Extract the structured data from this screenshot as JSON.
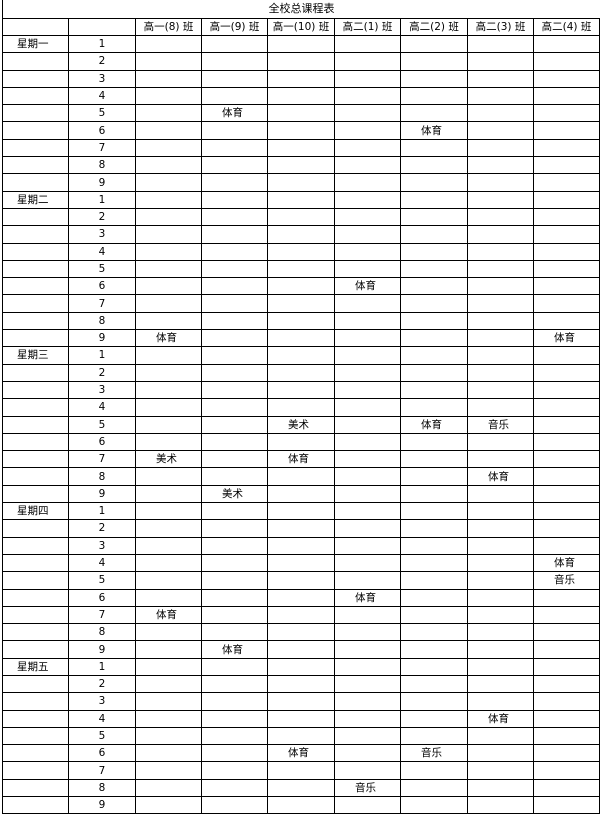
{
  "title": "全校总课程表",
  "classes": [
    "高一(8) 班",
    "高一(9) 班",
    "高一(10) 班",
    "高二(1) 班",
    "高二(2) 班",
    "高二(3) 班",
    "高二(4) 班"
  ],
  "days": [
    {
      "name": "星期一",
      "periods": [
        [
          "",
          "",
          "",
          "",
          "",
          "",
          ""
        ],
        [
          "",
          "",
          "",
          "",
          "",
          "",
          ""
        ],
        [
          "",
          "",
          "",
          "",
          "",
          "",
          ""
        ],
        [
          "",
          "",
          "",
          "",
          "",
          "",
          ""
        ],
        [
          "",
          "体育",
          "",
          "",
          "",
          "",
          ""
        ],
        [
          "",
          "",
          "",
          "",
          "体育",
          "",
          ""
        ],
        [
          "",
          "",
          "",
          "",
          "",
          "",
          ""
        ],
        [
          "",
          "",
          "",
          "",
          "",
          "",
          ""
        ],
        [
          "",
          "",
          "",
          "",
          "",
          "",
          ""
        ]
      ]
    },
    {
      "name": "星期二",
      "periods": [
        [
          "",
          "",
          "",
          "",
          "",
          "",
          ""
        ],
        [
          "",
          "",
          "",
          "",
          "",
          "",
          ""
        ],
        [
          "",
          "",
          "",
          "",
          "",
          "",
          ""
        ],
        [
          "",
          "",
          "",
          "",
          "",
          "",
          ""
        ],
        [
          "",
          "",
          "",
          "",
          "",
          "",
          ""
        ],
        [
          "",
          "",
          "",
          "体育",
          "",
          "",
          ""
        ],
        [
          "",
          "",
          "",
          "",
          "",
          "",
          ""
        ],
        [
          "",
          "",
          "",
          "",
          "",
          "",
          ""
        ],
        [
          "体育",
          "",
          "",
          "",
          "",
          "",
          "体育"
        ]
      ]
    },
    {
      "name": "星期三",
      "periods": [
        [
          "",
          "",
          "",
          "",
          "",
          "",
          ""
        ],
        [
          "",
          "",
          "",
          "",
          "",
          "",
          ""
        ],
        [
          "",
          "",
          "",
          "",
          "",
          "",
          ""
        ],
        [
          "",
          "",
          "",
          "",
          "",
          "",
          ""
        ],
        [
          "",
          "",
          "美术",
          "",
          "体育",
          "音乐",
          ""
        ],
        [
          "",
          "",
          "",
          "",
          "",
          "",
          ""
        ],
        [
          "美术",
          "",
          "体育",
          "",
          "",
          "",
          ""
        ],
        [
          "",
          "",
          "",
          "",
          "",
          "体育",
          ""
        ],
        [
          "",
          "美术",
          "",
          "",
          "",
          "",
          ""
        ]
      ]
    },
    {
      "name": "星期四",
      "periods": [
        [
          "",
          "",
          "",
          "",
          "",
          "",
          ""
        ],
        [
          "",
          "",
          "",
          "",
          "",
          "",
          ""
        ],
        [
          "",
          "",
          "",
          "",
          "",
          "",
          ""
        ],
        [
          "",
          "",
          "",
          "",
          "",
          "",
          "体育"
        ],
        [
          "",
          "",
          "",
          "",
          "",
          "",
          "音乐"
        ],
        [
          "",
          "",
          "",
          "体育",
          "",
          "",
          ""
        ],
        [
          "体育",
          "",
          "",
          "",
          "",
          "",
          ""
        ],
        [
          "",
          "",
          "",
          "",
          "",
          "",
          ""
        ],
        [
          "",
          "体育",
          "",
          "",
          "",
          "",
          ""
        ]
      ]
    },
    {
      "name": "星期五",
      "periods": [
        [
          "",
          "",
          "",
          "",
          "",
          "",
          ""
        ],
        [
          "",
          "",
          "",
          "",
          "",
          "",
          ""
        ],
        [
          "",
          "",
          "",
          "",
          "",
          "",
          ""
        ],
        [
          "",
          "",
          "",
          "",
          "",
          "体育",
          ""
        ],
        [
          "",
          "",
          "",
          "",
          "",
          "",
          ""
        ],
        [
          "",
          "",
          "体育",
          "",
          "音乐",
          "",
          ""
        ],
        [
          "",
          "",
          "",
          "",
          "",
          "",
          ""
        ],
        [
          "",
          "",
          "",
          "音乐",
          "",
          "",
          ""
        ],
        [
          "",
          "",
          "",
          "",
          "",
          "",
          ""
        ]
      ]
    }
  ]
}
